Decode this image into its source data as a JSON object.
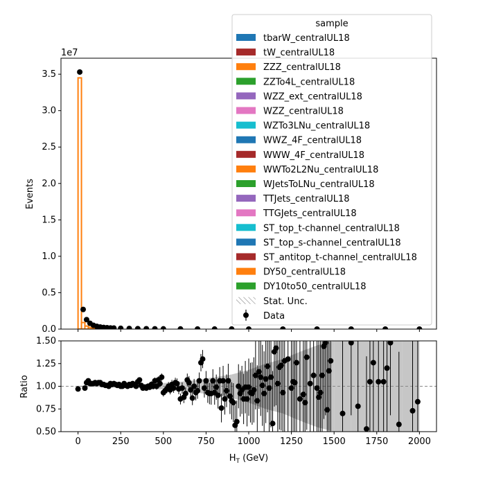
{
  "chart_data": [
    {
      "type": "bar",
      "panel": "main",
      "xlabel": "",
      "ylabel": "Events",
      "offset_text": "1e7",
      "xlim": [
        -100,
        2100
      ],
      "ylim": [
        0,
        37200000.0
      ],
      "yticks": [
        0.0,
        0.5,
        1.0,
        1.5,
        2.0,
        2.5,
        3.0,
        3.5
      ],
      "ytick_labels": [
        "0.0",
        "0.5",
        "1.0",
        "1.5",
        "2.0",
        "2.5",
        "3.0",
        "3.5"
      ],
      "xticks": [
        0,
        250,
        500,
        750,
        1000,
        1250,
        1500,
        1750,
        2000
      ],
      "bin_edges": [
        0,
        20,
        40,
        60,
        80,
        100,
        120,
        140,
        160,
        180,
        200
      ],
      "mc_values": [
        34500000,
        900000,
        420000,
        230000,
        160000,
        120000,
        95000,
        80000,
        70000,
        62000
      ],
      "mc_color": "#ff7f0e",
      "data_x": [
        10,
        30,
        50,
        70,
        90,
        110,
        130,
        150,
        170,
        190,
        210,
        250,
        300,
        350,
        400,
        450,
        500,
        600,
        700,
        800,
        900,
        1000,
        1200,
        1400,
        1600,
        1800,
        2000
      ],
      "data_y": [
        35300000,
        2700000,
        1300000,
        800000,
        520000,
        380000,
        290000,
        230000,
        190000,
        160000,
        140000,
        110000,
        85000,
        65000,
        50000,
        40000,
        32000,
        22000,
        15000,
        10000,
        7000,
        5000,
        3000,
        2000,
        1200,
        800,
        500
      ],
      "legend": {
        "title": "sample",
        "placement": "upper right",
        "entries": [
          {
            "label": "tbarW_centralUL18",
            "color": "#1f77b4"
          },
          {
            "label": "tW_centralUL18",
            "color": "#a52a2a"
          },
          {
            "label": "ZZZ_centralUL18",
            "color": "#ff7f0e"
          },
          {
            "label": "ZZTo4L_centralUL18",
            "color": "#2ca02c"
          },
          {
            "label": "WZZ_ext_centralUL18",
            "color": "#9467bd"
          },
          {
            "label": "WZZ_centralUL18",
            "color": "#e377c2"
          },
          {
            "label": "WZTo3LNu_centralUL18",
            "color": "#17becf"
          },
          {
            "label": "WWZ_4F_centralUL18",
            "color": "#1f77b4"
          },
          {
            "label": "WWW_4F_centralUL18",
            "color": "#a52a2a"
          },
          {
            "label": "WWTo2L2Nu_centralUL18",
            "color": "#ff7f0e"
          },
          {
            "label": "WJetsToLNu_centralUL18",
            "color": "#2ca02c"
          },
          {
            "label": "TTJets_centralUL18",
            "color": "#9467bd"
          },
          {
            "label": "TTGJets_centralUL18",
            "color": "#e377c2"
          },
          {
            "label": "ST_top_t-channel_centralUL18",
            "color": "#17becf"
          },
          {
            "label": "ST_top_s-channel_centralUL18",
            "color": "#1f77b4"
          },
          {
            "label": "ST_antitop_t-channel_centralUL18",
            "color": "#a52a2a"
          },
          {
            "label": "DY50_centralUL18",
            "color": "#ff7f0e"
          },
          {
            "label": "DY10to50_centralUL18",
            "color": "#2ca02c"
          }
        ],
        "stat_label": "Stat. Unc.",
        "data_label": "Data"
      }
    },
    {
      "type": "scatter",
      "panel": "ratio",
      "xlabel": "H$_T$ (GeV)",
      "xlabel_main": "H",
      "xlabel_sub": "T",
      "xlabel_rest": " (GeV)",
      "ylabel": "Ratio",
      "xlim": [
        -100,
        2100
      ],
      "ylim": [
        0.5,
        1.5
      ],
      "yticks": [
        0.5,
        0.75,
        1.0,
        1.25,
        1.5
      ],
      "ytick_labels": [
        "0.50",
        "0.75",
        "1.00",
        "1.25",
        "1.50"
      ],
      "xticks": [
        0,
        250,
        500,
        750,
        1000,
        1250,
        1500,
        1750,
        2000
      ],
      "xtick_labels": [
        "0",
        "250",
        "500",
        "750",
        "1000",
        "1250",
        "1500",
        "1750",
        "2000"
      ],
      "reference_line": 1.0,
      "points": [
        [
          0,
          0.97,
          0.004
        ],
        [
          40,
          0.98,
          0.006
        ],
        [
          50,
          1.04,
          0.008
        ],
        [
          60,
          1.06,
          0.008
        ],
        [
          70,
          1.03,
          0.009
        ],
        [
          80,
          1.03,
          0.01
        ],
        [
          90,
          1.03,
          0.01
        ],
        [
          100,
          1.04,
          0.011
        ],
        [
          110,
          1.03,
          0.012
        ],
        [
          120,
          1.04,
          0.012
        ],
        [
          130,
          1.04,
          0.013
        ],
        [
          140,
          1.02,
          0.013
        ],
        [
          150,
          1.02,
          0.014
        ],
        [
          160,
          1.01,
          0.014
        ],
        [
          170,
          1.01,
          0.015
        ],
        [
          180,
          1.0,
          0.015
        ],
        [
          190,
          1.03,
          0.016
        ],
        [
          200,
          1.02,
          0.016
        ],
        [
          210,
          1.03,
          0.017
        ],
        [
          220,
          1.02,
          0.017
        ],
        [
          230,
          1.01,
          0.018
        ],
        [
          240,
          1.02,
          0.018
        ],
        [
          250,
          1.0,
          0.019
        ],
        [
          260,
          1.0,
          0.02
        ],
        [
          270,
          1.03,
          0.02
        ],
        [
          280,
          1.01,
          0.021
        ],
        [
          290,
          1.0,
          0.022
        ],
        [
          300,
          1.02,
          0.022
        ],
        [
          310,
          1.01,
          0.023
        ],
        [
          320,
          1.03,
          0.024
        ],
        [
          330,
          1.02,
          0.025
        ],
        [
          340,
          1.0,
          0.025
        ],
        [
          350,
          1.05,
          0.026
        ],
        [
          360,
          1.07,
          0.027
        ],
        [
          370,
          1.01,
          0.028
        ],
        [
          380,
          0.98,
          0.029
        ],
        [
          390,
          0.99,
          0.03
        ],
        [
          400,
          0.98,
          0.031
        ],
        [
          410,
          1.0,
          0.032
        ],
        [
          420,
          0.99,
          0.033
        ],
        [
          430,
          1.02,
          0.034
        ],
        [
          440,
          1.0,
          0.035
        ],
        [
          450,
          1.06,
          0.036
        ],
        [
          460,
          1.0,
          0.037
        ],
        [
          470,
          1.07,
          0.038
        ],
        [
          480,
          1.03,
          0.04
        ],
        [
          490,
          1.1,
          0.041
        ],
        [
          500,
          0.93,
          0.043
        ],
        [
          510,
          0.95,
          0.044
        ],
        [
          520,
          0.97,
          0.046
        ],
        [
          530,
          1.0,
          0.047
        ],
        [
          540,
          0.96,
          0.049
        ],
        [
          550,
          1.02,
          0.05
        ],
        [
          560,
          0.98,
          0.052
        ],
        [
          570,
          1.04,
          0.054
        ],
        [
          580,
          1.03,
          0.056
        ],
        [
          590,
          0.97,
          0.058
        ],
        [
          600,
          0.86,
          0.06
        ],
        [
          610,
          0.98,
          0.062
        ],
        [
          620,
          0.88,
          0.065
        ],
        [
          630,
          0.92,
          0.067
        ],
        [
          640,
          1.07,
          0.07
        ],
        [
          650,
          1.04,
          0.072
        ],
        [
          660,
          0.96,
          0.075
        ],
        [
          670,
          0.87,
          0.078
        ],
        [
          680,
          1.0,
          0.081
        ],
        [
          690,
          0.93,
          0.085
        ],
        [
          700,
          0.95,
          0.088
        ],
        [
          710,
          1.06,
          0.092
        ],
        [
          720,
          1.26,
          0.096
        ],
        [
          730,
          1.3,
          0.1
        ],
        [
          740,
          0.98,
          0.104
        ],
        [
          750,
          1.06,
          0.108
        ],
        [
          760,
          0.93,
          0.113
        ],
        [
          770,
          0.92,
          0.118
        ],
        [
          780,
          0.92,
          0.123
        ],
        [
          790,
          1.06,
          0.128
        ],
        [
          800,
          0.93,
          0.133
        ],
        [
          810,
          0.99,
          0.139
        ],
        [
          820,
          0.9,
          0.145
        ],
        [
          830,
          1.06,
          0.151
        ],
        [
          840,
          0.76,
          0.158
        ],
        [
          850,
          1.06,
          0.165
        ],
        [
          860,
          0.86,
          0.172
        ],
        [
          870,
          0.95,
          0.18
        ],
        [
          880,
          1.06,
          0.188
        ],
        [
          890,
          0.89,
          0.196
        ],
        [
          900,
          0.84,
          0.205
        ],
        [
          910,
          0.82,
          0.214
        ],
        [
          920,
          0.57,
          0.223
        ],
        [
          930,
          0.61,
          0.233
        ],
        [
          940,
          1.0,
          0.243
        ],
        [
          950,
          0.92,
          0.254
        ],
        [
          960,
          0.96,
          0.265
        ],
        [
          970,
          0.86,
          0.277
        ],
        [
          980,
          0.99,
          0.289
        ],
        [
          990,
          0.86,
          0.302
        ],
        [
          1000,
          0.99,
          0.315
        ],
        [
          1010,
          0.93,
          0.329
        ],
        [
          1020,
          0.92,
          0.344
        ],
        [
          1030,
          0.96,
          0.359
        ],
        [
          1040,
          1.12,
          0.375
        ],
        [
          1050,
          0.84,
          0.391
        ],
        [
          1060,
          1.16,
          0.409
        ],
        [
          1070,
          1.1,
          0.427
        ],
        [
          1080,
          1.01,
          0.446
        ],
        [
          1090,
          0.92,
          0.465
        ],
        [
          1100,
          1.08,
          0.486
        ],
        [
          1110,
          1.22,
          0.507
        ],
        [
          1120,
          0.98,
          0.53
        ],
        [
          1130,
          1.1,
          0.553
        ],
        [
          1140,
          0.59,
          0.578
        ],
        [
          1150,
          1.38,
          0.603
        ],
        [
          1160,
          1.42,
          0.63
        ],
        [
          1170,
          1.03,
          0.658
        ],
        [
          1180,
          1.21,
          0.687
        ],
        [
          1190,
          1.23,
          0.717
        ],
        [
          1200,
          0.93,
          0.749
        ],
        [
          1210,
          1.28,
          0.782
        ],
        [
          1230,
          1.3,
          0.8
        ],
        [
          1250,
          0.98,
          0.8
        ],
        [
          1260,
          1.05,
          0.8
        ],
        [
          1270,
          1.04,
          0.8
        ],
        [
          1280,
          1.26,
          0.8
        ],
        [
          1300,
          0.86,
          0.8
        ],
        [
          1320,
          0.91,
          0.8
        ],
        [
          1330,
          0.82,
          0.8
        ],
        [
          1340,
          1.32,
          0.8
        ],
        [
          1360,
          1.03,
          0.8
        ],
        [
          1380,
          1.12,
          0.8
        ],
        [
          1400,
          0.98,
          0.8
        ],
        [
          1410,
          0.88,
          0.8
        ],
        [
          1420,
          0.93,
          0.8
        ],
        [
          1430,
          1.12,
          0.8
        ],
        [
          1440,
          1.44,
          0.8
        ],
        [
          1450,
          1.48,
          0.8
        ],
        [
          1460,
          0.74,
          0.8
        ],
        [
          1470,
          1.17,
          0.8
        ],
        [
          1480,
          1.28,
          0.8
        ],
        [
          1550,
          0.7,
          0.8
        ],
        [
          1600,
          1.48,
          0.8
        ],
        [
          1640,
          0.78,
          0.8
        ],
        [
          1690,
          0.53,
          0.8
        ],
        [
          1710,
          1.05,
          0.8
        ],
        [
          1730,
          1.26,
          0.8
        ],
        [
          1760,
          1.05,
          0.8
        ],
        [
          1790,
          1.05,
          0.8
        ],
        [
          1810,
          1.2,
          0.8
        ],
        [
          1830,
          1.48,
          0.8
        ],
        [
          1880,
          0.58,
          0.8
        ],
        [
          1960,
          0.73,
          0.8
        ],
        [
          1990,
          0.83,
          0.8
        ]
      ],
      "stat_band": [
        [
          0,
          0.006
        ],
        [
          100,
          0.008
        ],
        [
          200,
          0.012
        ],
        [
          300,
          0.018
        ],
        [
          400,
          0.025
        ],
        [
          500,
          0.035
        ],
        [
          600,
          0.05
        ],
        [
          700,
          0.07
        ],
        [
          800,
          0.1
        ],
        [
          900,
          0.13
        ],
        [
          1000,
          0.18
        ],
        [
          1100,
          0.25
        ],
        [
          1200,
          0.3
        ],
        [
          1300,
          0.38
        ],
        [
          1400,
          0.45
        ],
        [
          1500,
          0.5
        ],
        [
          1600,
          0.5
        ],
        [
          1700,
          0.5
        ],
        [
          1800,
          0.5
        ],
        [
          1900,
          0.5
        ],
        [
          2000,
          0.5
        ]
      ]
    }
  ]
}
